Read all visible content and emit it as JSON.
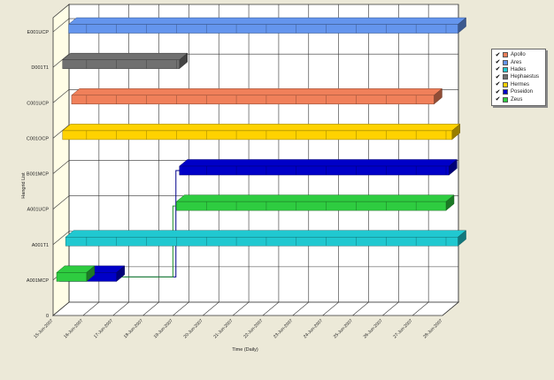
{
  "chart_data": {
    "type": "bar",
    "subtype": "3d-gantt",
    "ylabel": "Hangrid List",
    "xlabel": "Time (Daily)",
    "y_categories": [
      "0",
      "A001MCP",
      "A001T1",
      "A001UCP",
      "B001MCP",
      "C001OCP",
      "C001UCP",
      "D001T1",
      "E001UCP"
    ],
    "x_ticks": [
      "15-Jun-2007",
      "16-Jun-2007",
      "17-Jun-2007",
      "18-Jun-2007",
      "19-Jun-2007",
      "20-Jun-2007",
      "21-Jun-2007",
      "22-Jun-2007",
      "23-Jun-2007",
      "24-Jun-2007",
      "25-Jun-2007",
      "26-Jun-2007",
      "27-Jun-2007",
      "28-Jun-2007"
    ],
    "grid": true,
    "legend_position": "right",
    "series": [
      {
        "name": "Apollo",
        "color": "#f0805a",
        "bars": [
          {
            "row": "C001UCP",
            "start": "15.5-Jun-2007",
            "start_day": 15.5,
            "end_day": 27.6
          }
        ]
      },
      {
        "name": "Ares",
        "color": "#6495ed",
        "bars": [
          {
            "row": "E001UCP",
            "start_day": 15.4,
            "end_day": 28.4
          }
        ]
      },
      {
        "name": "Hades",
        "color": "#20c8d0",
        "bars": [
          {
            "row": "A001T1",
            "start_day": 15.3,
            "end_day": 28.4
          }
        ]
      },
      {
        "name": "Hephaestus",
        "color": "#707070",
        "bars": [
          {
            "row": "D001T1",
            "start_day": 15.2,
            "end_day": 19.1
          }
        ]
      },
      {
        "name": "Hermes",
        "color": "#ffd200",
        "bars": [
          {
            "row": "C001OCP",
            "start_day": 15.2,
            "end_day": 28.2
          }
        ]
      },
      {
        "name": "Poseidon",
        "color": "#0000c8",
        "bars": [
          {
            "row": "A001MCP",
            "start_day": 15.1,
            "end_day": 17.0
          },
          {
            "row": "B001MCP",
            "start_day": 19.1,
            "end_day": 28.1
          }
        ]
      },
      {
        "name": "Zeus",
        "color": "#2ecc40",
        "bars": [
          {
            "row": "A001MCP",
            "start_day": 15.0,
            "end_day": 16.0
          },
          {
            "row": "A001UCP",
            "start_day": 19.0,
            "end_day": 28.0
          }
        ]
      }
    ],
    "links": [
      {
        "series": "Poseidon",
        "from_row": "A001MCP",
        "from_day": 17.0,
        "to_row": "B001MCP",
        "to_day": 19.1
      },
      {
        "series": "Zeus",
        "from_row": "A001MCP",
        "from_day": 16.0,
        "to_row": "A001UCP",
        "to_day": 19.0
      }
    ]
  }
}
